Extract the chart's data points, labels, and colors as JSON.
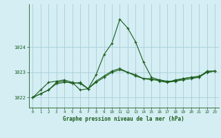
{
  "title": "Graphe pression niveau de la mer (hPa)",
  "background_color": "#d4eef4",
  "grid_color": "#a8cdd8",
  "line_color": "#1a5c1a",
  "xlim": [
    -0.5,
    23.5
  ],
  "ylim": [
    1021.6,
    1025.7
  ],
  "yticks": [
    1022,
    1023,
    1024
  ],
  "xticks": [
    0,
    1,
    2,
    3,
    4,
    5,
    6,
    7,
    8,
    9,
    10,
    11,
    12,
    13,
    14,
    15,
    16,
    17,
    18,
    19,
    20,
    21,
    22,
    23
  ],
  "series1": {
    "x": [
      0,
      1,
      2,
      3,
      4,
      5,
      6,
      7,
      8,
      9,
      10,
      11,
      12,
      13,
      14,
      15,
      16,
      17,
      18,
      19,
      20,
      21,
      22,
      23
    ],
    "y": [
      1022.0,
      1022.3,
      1022.6,
      1022.65,
      1022.7,
      1022.6,
      1022.55,
      1022.35,
      1022.9,
      1023.7,
      1024.15,
      1025.1,
      1024.75,
      1024.2,
      1023.4,
      1022.8,
      1022.7,
      1022.65,
      1022.65,
      1022.75,
      1022.8,
      1022.8,
      1023.05,
      1023.05
    ]
  },
  "series2": {
    "x": [
      0,
      1,
      2,
      3,
      4,
      5,
      6,
      7,
      8,
      9,
      10,
      11,
      12,
      13,
      14,
      15,
      16,
      17,
      18,
      19,
      20,
      21,
      22,
      23
    ],
    "y": [
      1022.0,
      1022.15,
      1022.3,
      1022.6,
      1022.65,
      1022.55,
      1022.6,
      1022.35,
      1022.6,
      1022.8,
      1023.0,
      1023.1,
      1023.0,
      1022.85,
      1022.75,
      1022.7,
      1022.7,
      1022.6,
      1022.65,
      1022.7,
      1022.75,
      1022.8,
      1023.0,
      1023.05
    ]
  },
  "series3": {
    "x": [
      0,
      1,
      2,
      3,
      4,
      5,
      6,
      7,
      8,
      9,
      10,
      11,
      12,
      13,
      14,
      15,
      16,
      17,
      18,
      19,
      20,
      21,
      22,
      23
    ],
    "y": [
      1022.0,
      1022.15,
      1022.3,
      1022.55,
      1022.6,
      1022.6,
      1022.3,
      1022.35,
      1022.65,
      1022.85,
      1023.05,
      1023.15,
      1023.0,
      1022.9,
      1022.75,
      1022.75,
      1022.65,
      1022.6,
      1022.7,
      1022.75,
      1022.8,
      1022.85,
      1023.0,
      1023.05
    ]
  }
}
